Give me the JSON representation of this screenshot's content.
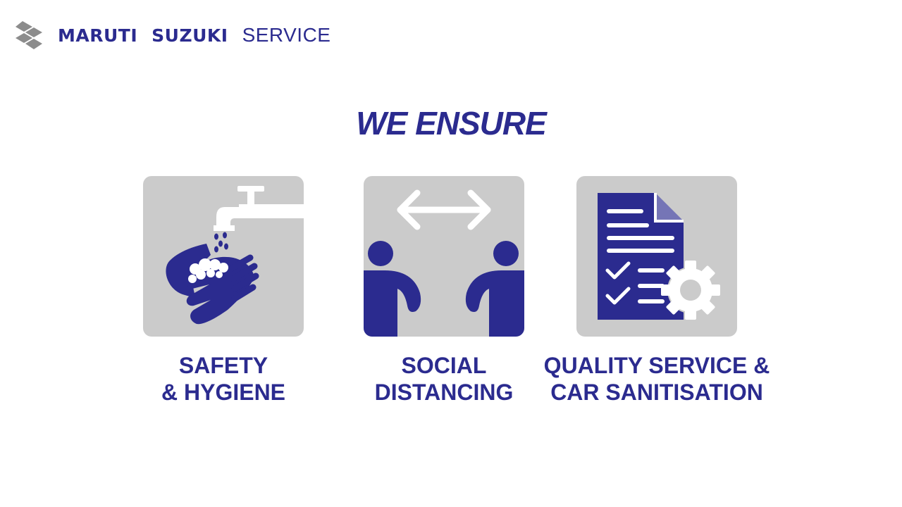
{
  "brand": {
    "name_part1": "MARUTI",
    "name_part2": "SUZUKI",
    "service": "SERVICE",
    "logo_icon": "suzuki-s-logo"
  },
  "headline": "WE ENSURE",
  "colors": {
    "primary": "#2b2b8f",
    "card_bg": "#cbcbcb",
    "white": "#ffffff"
  },
  "cards": [
    {
      "icon": "handwash-icon",
      "line1": "SAFETY",
      "line2": "& HYGIENE"
    },
    {
      "icon": "social-distancing-icon",
      "line1": "SOCIAL",
      "line2": "DISTANCING"
    },
    {
      "icon": "document-gear-icon",
      "line1": "QUALITY SERVICE &",
      "line2": "CAR SANITISATION"
    }
  ]
}
